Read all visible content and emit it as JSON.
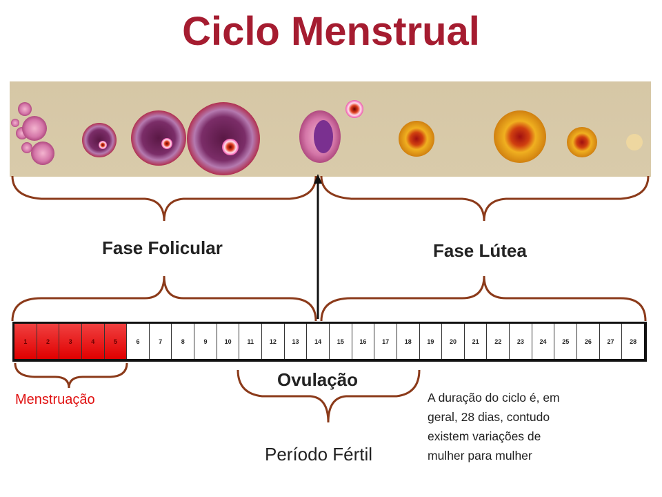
{
  "title": "Ciclo Menstrual",
  "phases": {
    "follicular": "Fase Folicular",
    "luteal": "Fase Lútea"
  },
  "days": [
    "1",
    "2",
    "3",
    "4",
    "5",
    "6",
    "7",
    "8",
    "9",
    "10",
    "11",
    "12",
    "13",
    "14",
    "15",
    "16",
    "17",
    "18",
    "19",
    "20",
    "21",
    "22",
    "23",
    "24",
    "25",
    "26",
    "27",
    "28"
  ],
  "menstruation_days": 5,
  "labels": {
    "ovulation": "Ovulação",
    "menstruation": "Menstruação",
    "fertile": "Período Fértil"
  },
  "note": [
    "A duração do ciclo é, em",
    "geral, 28 dias, contudo",
    "existem variações de",
    "mulher para mulher"
  ],
  "colors": {
    "title": "#a51c30",
    "brace": "#8b3a1a",
    "menstruation": "#e00000"
  }
}
